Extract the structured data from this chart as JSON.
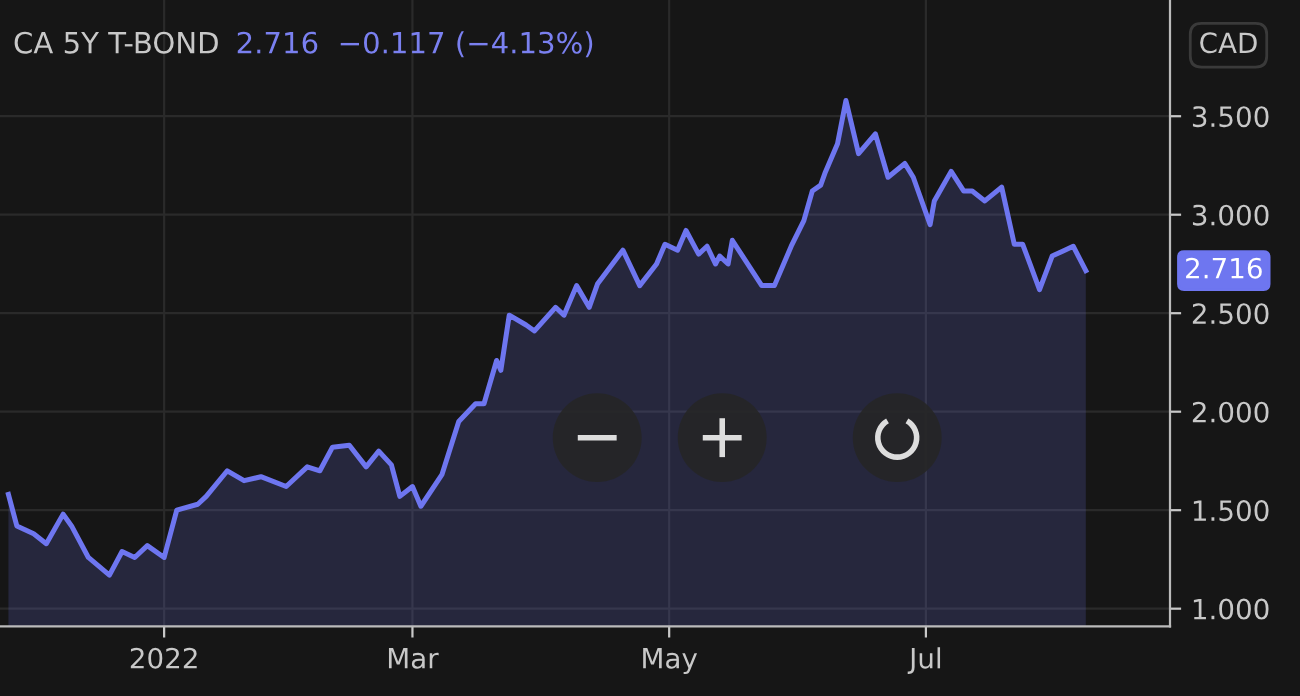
{
  "chart_data": {
    "type": "area",
    "title": "CA 5Y T-BOND",
    "subtitle": "2.716  −0.117 (−4.13%)",
    "annotations": [
      "CAD",
      "2.716"
    ],
    "x": [
      "2021-11-25",
      "2021-11-27",
      "2021-12-01",
      "2021-12-04",
      "2021-12-08",
      "2021-12-10",
      "2021-12-14",
      "2021-12-19",
      "2021-12-22",
      "2021-12-25",
      "2021-12-28",
      "2022-01-01",
      "2022-01-04",
      "2022-01-09",
      "2022-01-11",
      "2022-01-16",
      "2022-01-20",
      "2022-01-24",
      "2022-01-30",
      "2022-02-04",
      "2022-02-07",
      "2022-02-10",
      "2022-02-14",
      "2022-02-18",
      "2022-02-21",
      "2022-02-24",
      "2022-02-26",
      "2022-03-01",
      "2022-03-03",
      "2022-03-08",
      "2022-03-12",
      "2022-03-16",
      "2022-03-18",
      "2022-03-21",
      "2022-03-22",
      "2022-03-24",
      "2022-03-28",
      "2022-03-30",
      "2022-04-04",
      "2022-04-06",
      "2022-04-09",
      "2022-04-12",
      "2022-04-14",
      "2022-04-20",
      "2022-04-24",
      "2022-04-28",
      "2022-04-30",
      "2022-05-03",
      "2022-05-05",
      "2022-05-08",
      "2022-05-10",
      "2022-05-12",
      "2022-05-13",
      "2022-05-15",
      "2022-05-16",
      "2022-05-23",
      "2022-05-26",
      "2022-05-30",
      "2022-06-02",
      "2022-06-04",
      "2022-06-06",
      "2022-06-07",
      "2022-06-10",
      "2022-06-12",
      "2022-06-15",
      "2022-06-19",
      "2022-06-22",
      "2022-06-26",
      "2022-06-28",
      "2022-07-02",
      "2022-07-03",
      "2022-07-07",
      "2022-07-10",
      "2022-07-12",
      "2022-07-15",
      "2022-07-19",
      "2022-07-22",
      "2022-07-24",
      "2022-07-28",
      "2022-07-31",
      "2022-08-03",
      "2022-08-05",
      "2022-08-08"
    ],
    "series": [
      {
        "color": "#6e76f0",
        "values": [
          1.58,
          1.42,
          1.38,
          1.33,
          1.48,
          1.42,
          1.26,
          1.17,
          1.29,
          1.26,
          1.32,
          1.26,
          1.5,
          1.53,
          1.57,
          1.7,
          1.65,
          1.67,
          1.62,
          1.72,
          1.7,
          1.82,
          1.83,
          1.72,
          1.8,
          1.73,
          1.57,
          1.62,
          1.52,
          1.68,
          1.95,
          2.04,
          2.04,
          2.26,
          2.21,
          2.49,
          2.44,
          2.41,
          2.53,
          2.49,
          2.64,
          2.53,
          2.65,
          2.82,
          2.64,
          2.75,
          2.85,
          2.82,
          2.92,
          2.8,
          2.84,
          2.75,
          2.79,
          2.75,
          2.87,
          2.64,
          2.64,
          2.84,
          2.97,
          3.12,
          3.15,
          3.21,
          3.36,
          3.58,
          3.31,
          3.41,
          3.19,
          3.26,
          3.19,
          2.95,
          3.07,
          3.22,
          3.12,
          3.12,
          3.07,
          3.14,
          2.85,
          2.85,
          2.62,
          2.79,
          2.82,
          2.84,
          2.716
        ]
      }
    ],
    "xlim": [
      "2021-11-23",
      "2022-08-28"
    ],
    "xticks": [
      {
        "value": "2022-01-01",
        "label": "2022"
      },
      {
        "value": "2022-03-01",
        "label": "Mar"
      },
      {
        "value": "2022-05-01",
        "label": "May"
      },
      {
        "value": "2022-07-01",
        "label": "Jul"
      }
    ],
    "ylim": [
      0.91,
      4.09
    ],
    "yticks": [
      {
        "value": 1.0,
        "label": "1.000"
      },
      {
        "value": 1.5,
        "label": "1.500"
      },
      {
        "value": 2.0,
        "label": "2.000"
      },
      {
        "value": 2.5,
        "label": "2.500"
      },
      {
        "value": 3.0,
        "label": "3.000"
      },
      {
        "value": 3.5,
        "label": "3.500"
      }
    ],
    "grid": true
  }
}
